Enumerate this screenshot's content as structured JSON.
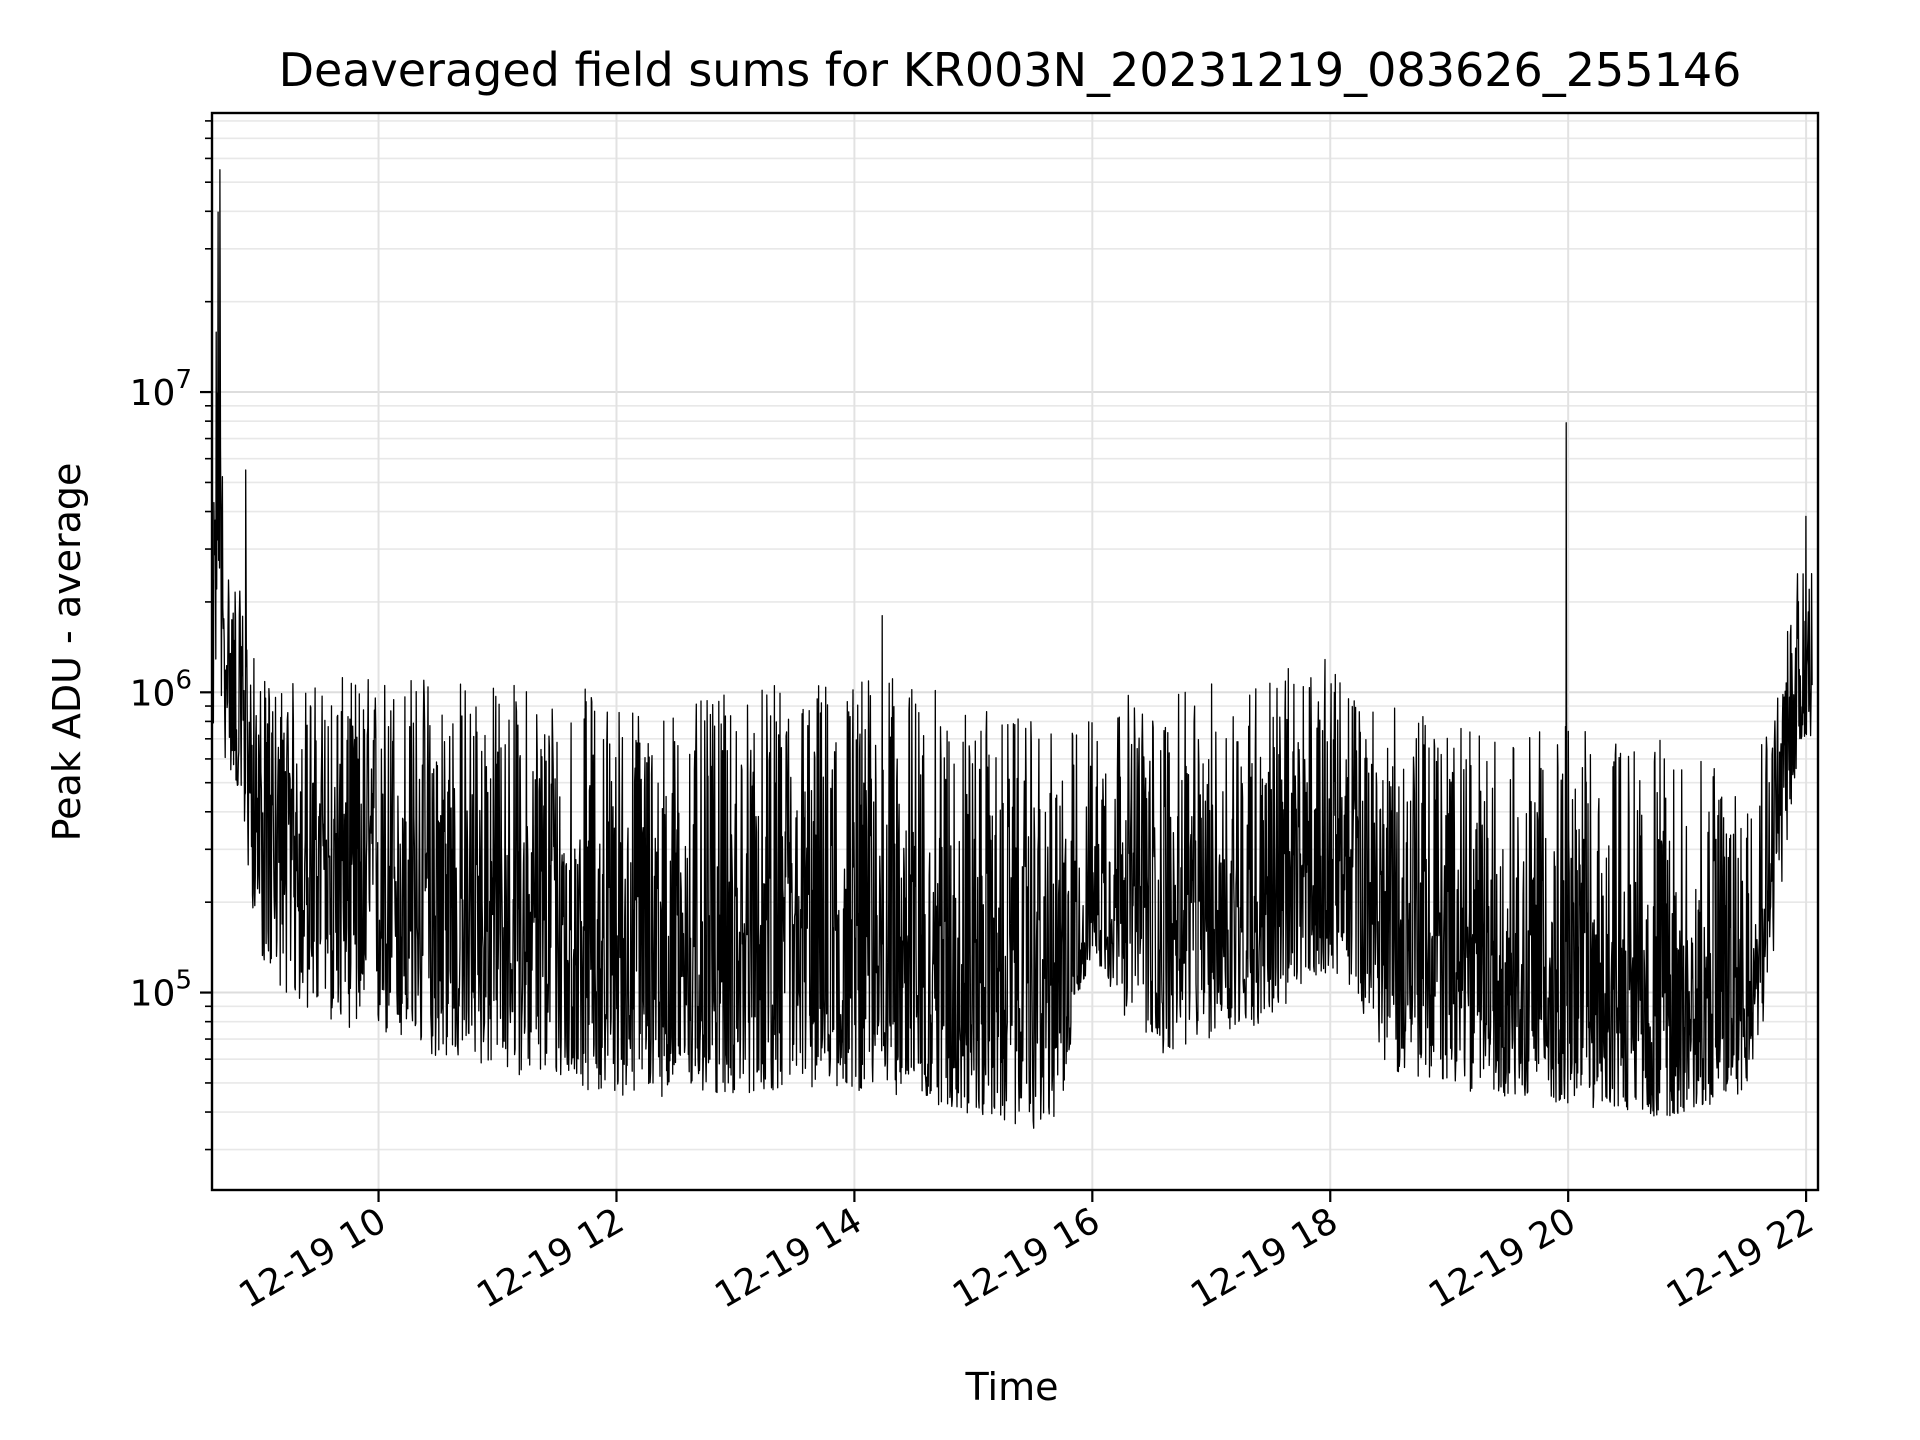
{
  "chart_data": {
    "type": "line",
    "title": "Deaveraged field sums for KR003N_20231219_083626_255146",
    "xlabel": "Time",
    "ylabel": "Peak ADU - average",
    "yscale": "log",
    "grid": true,
    "xlim": [
      "12-19 08:36",
      "12-19 22:06"
    ],
    "ylim": [
      22000,
      85000000
    ],
    "x_ticks": [
      "12-19 10",
      "12-19 12",
      "12-19 14",
      "12-19 16",
      "12-19 18",
      "12-19 20",
      "12-19 22"
    ],
    "y_ticks": [
      {
        "base": "10",
        "exp": "5",
        "value": 100000
      },
      {
        "base": "10",
        "exp": "6",
        "value": 1000000
      },
      {
        "base": "10",
        "exp": "7",
        "value": 10000000
      }
    ],
    "series": [
      {
        "color": "#000000",
        "envelope": {
          "time_hours": [
            8.6,
            8.65,
            8.7,
            8.8,
            9.0,
            9.3,
            9.6,
            10.0,
            10.5,
            11.0,
            11.5,
            12.0,
            12.5,
            13.0,
            13.5,
            14.0,
            14.5,
            15.0,
            15.5,
            15.75,
            15.85,
            16.0,
            16.3,
            16.5,
            17.0,
            17.5,
            18.0,
            18.2,
            18.5,
            19.0,
            19.5,
            20.0,
            20.5,
            20.8,
            21.0,
            21.3,
            21.5,
            21.7,
            21.9,
            22.05
          ],
          "upper": [
            1800000,
            60000000,
            3000000,
            2500000,
            1100000,
            1100000,
            1100000,
            1200000,
            1200000,
            1100000,
            1100000,
            1000000,
            900000,
            1000000,
            1100000,
            1200000,
            1100000,
            900000,
            800000,
            700000,
            800000,
            900000,
            1000000,
            900000,
            1100000,
            1200000,
            1300000,
            1000000,
            900000,
            800000,
            700000,
            800000,
            700000,
            700000,
            600000,
            600000,
            700000,
            1000000,
            2000000,
            7000000
          ],
          "median": [
            900000,
            8000000,
            1300000,
            1000000,
            400000,
            320000,
            280000,
            250000,
            200000,
            180000,
            170000,
            150000,
            140000,
            140000,
            150000,
            150000,
            140000,
            120000,
            110000,
            100000,
            130000,
            200000,
            250000,
            160000,
            180000,
            200000,
            300000,
            250000,
            170000,
            140000,
            120000,
            110000,
            100000,
            95000,
            95000,
            95000,
            100000,
            300000,
            1000000,
            1300000
          ],
          "lower": [
            600000,
            1500000,
            600000,
            500000,
            130000,
            90000,
            80000,
            70000,
            60000,
            55000,
            50000,
            45000,
            45000,
            45000,
            48000,
            47000,
            45000,
            38000,
            35000,
            38000,
            90000,
            130000,
            80000,
            60000,
            70000,
            80000,
            120000,
            100000,
            55000,
            48000,
            45000,
            42000,
            40000,
            38000,
            40000,
            42000,
            48000,
            100000,
            500000,
            600000
          ]
        },
        "spikes": [
          {
            "time": "12-19 08:40",
            "value": 55000000
          },
          {
            "time": "12-19 08:53",
            "value": 5500000
          },
          {
            "time": "12-19 14:14",
            "value": 1800000
          },
          {
            "time": "12-19 19:59",
            "value": 7900000
          },
          {
            "time": "12-19 22:04",
            "value": 6800000
          }
        ]
      }
    ]
  }
}
